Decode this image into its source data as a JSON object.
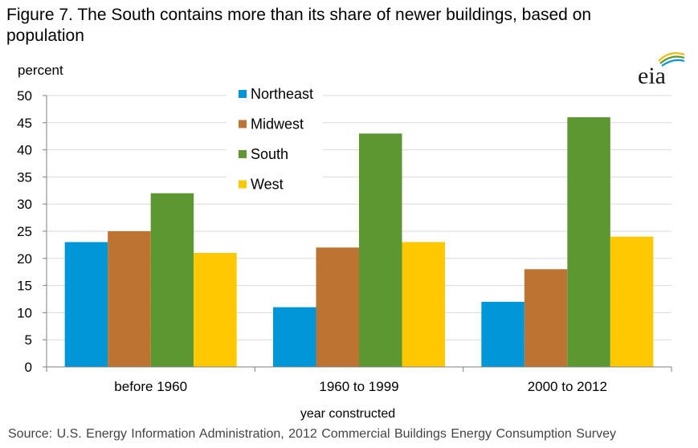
{
  "title": "Figure 7. The South contains more than its share of newer buildings, based on population",
  "source": "Source: U.S. Energy Information Administration,  2012 Commercial Buildings Energy Consumption Survey",
  "logo_text": "eia",
  "colors": {
    "Northeast": "#0096d7",
    "Midwest": "#bd7332",
    "South": "#5d9731",
    "West": "#ffc800",
    "grid": "#d9d9d9",
    "axis": "#7f7f7f"
  },
  "chart_data": {
    "type": "bar",
    "title": "Figure 7. The South contains more than its share of newer buildings, based on population",
    "xlabel": "year constructed",
    "ylabel": "percent",
    "ylim": [
      0,
      50
    ],
    "yticks": [
      0,
      5,
      10,
      15,
      20,
      25,
      30,
      35,
      40,
      45,
      50
    ],
    "categories": [
      "before 1960",
      "1960 to 1999",
      "2000 to 2012"
    ],
    "series": [
      {
        "name": "Northeast",
        "values": [
          23,
          11,
          12
        ]
      },
      {
        "name": "Midwest",
        "values": [
          25,
          22,
          18
        ]
      },
      {
        "name": "South",
        "values": [
          32,
          43,
          46
        ]
      },
      {
        "name": "West",
        "values": [
          21,
          23,
          24
        ]
      }
    ],
    "grid": true,
    "legend_position": "top-center"
  }
}
